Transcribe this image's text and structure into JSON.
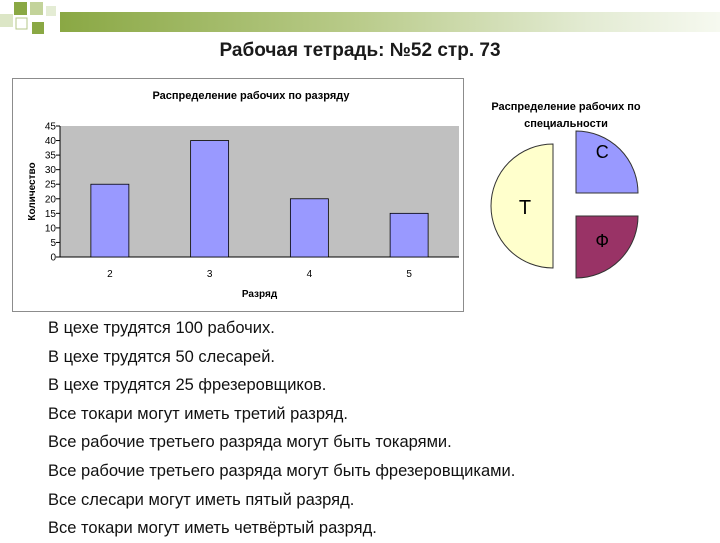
{
  "slide": {
    "title": "Рабочая тетрадь: №52 стр. 73",
    "statements": [
      "В цехе трудятся 100 рабочих.",
      "В цехе трудятся 50 слесарей.",
      "В цехе трудятся 25 фрезеровщиков.",
      "Все токари могут иметь третий разряд.",
      "Все рабочие третьего разряда могут быть токарями.",
      "Все рабочие третьего разряда могут быть фрезеровщиками.",
      "Все слесари могут иметь пятый разряд.",
      "Все токари могут иметь четвёртый разряд."
    ]
  },
  "colors": {
    "accent_green": "#8aa844",
    "plot_bg": "#c0c0c0",
    "bar_fill": "#9999ff",
    "slice_T": "#ffffcc",
    "slice_S": "#9999ff",
    "slice_F": "#993366"
  },
  "chart_data": [
    {
      "type": "bar",
      "title": "Распределение рабочих по разряду",
      "xlabel": "Разряд",
      "ylabel": "Количество",
      "categories": [
        "2",
        "3",
        "4",
        "5"
      ],
      "values": [
        25,
        40,
        20,
        15
      ],
      "yticks": [
        "0",
        "5",
        "10",
        "15",
        "20",
        "25",
        "30",
        "35",
        "40",
        "45"
      ],
      "ylim": [
        0,
        45
      ],
      "grid": false,
      "legend": "none"
    },
    {
      "type": "pie",
      "title_lines": [
        "Распределение рабочих по",
        "специальности"
      ],
      "labels": [
        "Т",
        "С",
        "Ф"
      ],
      "values": [
        50,
        25,
        25
      ],
      "exploded": true
    }
  ]
}
